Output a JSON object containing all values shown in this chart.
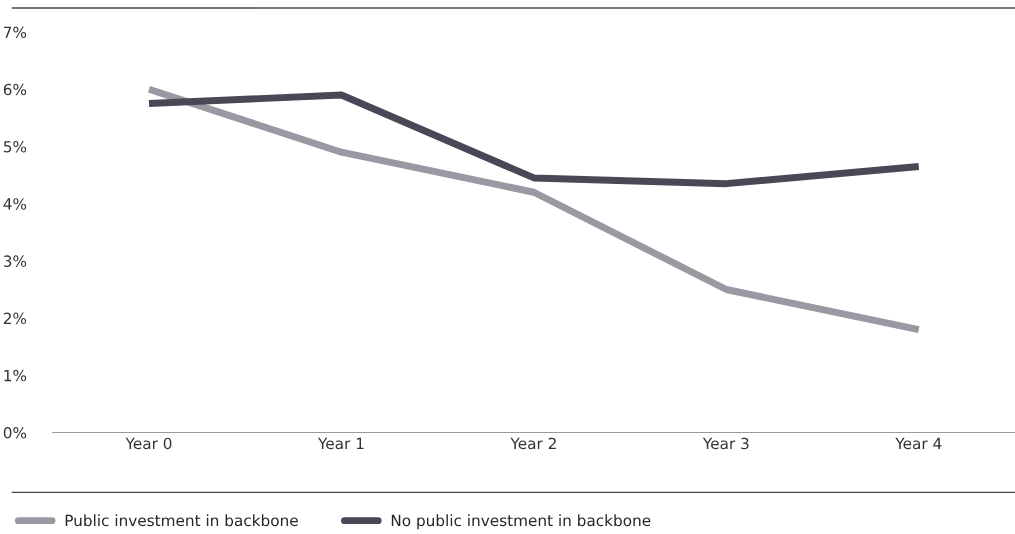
{
  "chart_data": {
    "type": "line",
    "categories": [
      "Year 0",
      "Year 1",
      "Year 2",
      "Year 3",
      "Year 4"
    ],
    "series": [
      {
        "name": "Public investment in backbone",
        "color": "#9a98a2",
        "values": [
          6.0,
          4.9,
          4.2,
          2.5,
          1.8
        ]
      },
      {
        "name": "No public investment in backbone",
        "color": "#4a4756",
        "values": [
          5.75,
          5.9,
          4.45,
          4.35,
          4.65
        ]
      }
    ],
    "ylim": [
      0,
      7
    ],
    "yticks": [
      {
        "value": 0,
        "label": "0%"
      },
      {
        "value": 1,
        "label": "1%"
      },
      {
        "value": 2,
        "label": "2%"
      },
      {
        "value": 3,
        "label": "3%"
      },
      {
        "value": 4,
        "label": "4%"
      },
      {
        "value": 5,
        "label": "5%"
      },
      {
        "value": 6,
        "label": "6%"
      },
      {
        "value": 7,
        "label": "7%"
      }
    ],
    "grid": false,
    "legend": "bottom left",
    "marker": "none",
    "line_style": "solid"
  }
}
